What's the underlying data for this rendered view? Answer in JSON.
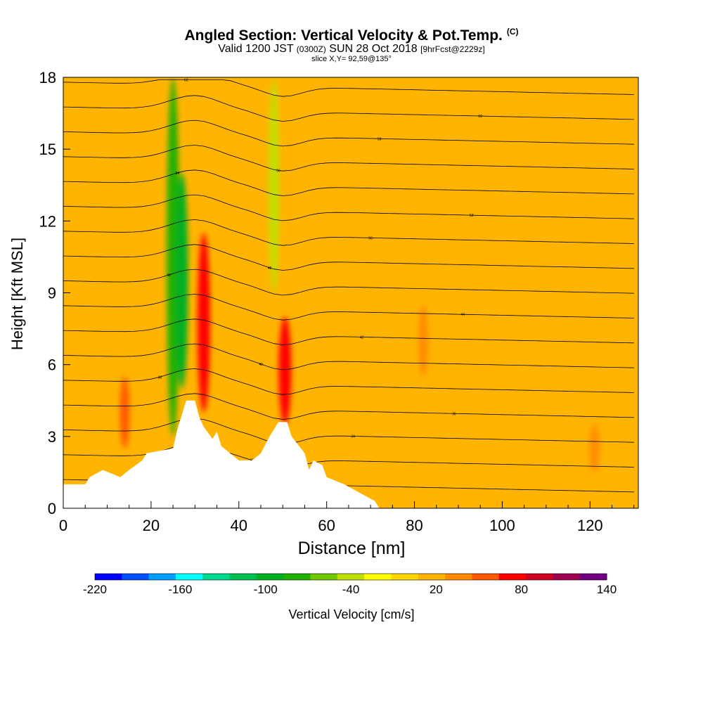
{
  "title": "Angled Section: Vertical Velocity & Pot.Temp.",
  "title_tag": "(C)",
  "subtitle_main": "Valid 1200 JST",
  "subtitle_z": "(0300Z)",
  "subtitle_date": "SUN 28 Oct 2018",
  "subtitle_fcst": "[9hrFcst@2229z]",
  "slice_text": "slice X,Y= 92,59@135°",
  "chart_data": {
    "type": "heatmap",
    "title": "Angled Section: Vertical Velocity & Pot.Temp.",
    "xlabel": "Distance [nm]",
    "ylabel": "Height [Kft MSL]",
    "xlim": [
      0,
      131
    ],
    "ylim": [
      0,
      18
    ],
    "x_ticks": [
      "0",
      "20",
      "40",
      "60",
      "80",
      "100",
      "120"
    ],
    "y_ticks": [
      "0",
      "3",
      "6",
      "9",
      "12",
      "15",
      "18"
    ],
    "colorbar": {
      "label": "Vertical Velocity [cm/s]",
      "tick_labels": [
        "-220",
        "-160",
        "-100",
        "-40",
        "20",
        "80",
        "140"
      ],
      "min": -220,
      "max": 140,
      "step": 20,
      "colors": [
        "#0000ff",
        "#0050ff",
        "#00a0ff",
        "#00ffff",
        "#00d890",
        "#00c050",
        "#00b020",
        "#20b000",
        "#70c800",
        "#c0e000",
        "#ffff00",
        "#ffd700",
        "#ffb400",
        "#ff8c00",
        "#ff5a00",
        "#ff0000",
        "#d00020",
        "#a00050",
        "#700080"
      ]
    },
    "velocity_features": [
      {
        "x": 25,
        "z_base": 3.0,
        "z_top": 18,
        "w_cm_s": -80
      },
      {
        "x": 27,
        "z_base": 5.0,
        "z_top": 14,
        "w_cm_s": -100
      },
      {
        "x": 48,
        "z_base": 9.0,
        "z_top": 18,
        "w_cm_s": -40
      },
      {
        "x": 32,
        "z_base": 4.0,
        "z_top": 11.5,
        "w_cm_s": 80
      },
      {
        "x": 50.5,
        "z_base": 3.5,
        "z_top": 8,
        "w_cm_s": 80
      },
      {
        "x": 14,
        "z_base": 2.5,
        "z_top": 5.5,
        "w_cm_s": 60
      },
      {
        "x": 82,
        "z_base": 5.5,
        "z_top": 8.5,
        "w_cm_s": 50
      },
      {
        "x": 5,
        "z_base": 2.0,
        "z_top": 18,
        "w_cm_s": 30
      },
      {
        "x": 41,
        "z_base": 4.0,
        "z_top": 18,
        "w_cm_s": 30
      },
      {
        "x": 121,
        "z_base": 1.5,
        "z_top": 3.5,
        "w_cm_s": 40
      }
    ],
    "terrain_profile": [
      [
        0,
        1.0
      ],
      [
        5,
        1.0
      ],
      [
        6,
        1.3
      ],
      [
        9,
        1.6
      ],
      [
        13,
        1.3
      ],
      [
        15,
        1.6
      ],
      [
        18,
        2.0
      ],
      [
        19,
        2.3
      ],
      [
        25,
        2.5
      ],
      [
        26,
        3.3
      ],
      [
        28,
        4.5
      ],
      [
        30,
        4.5
      ],
      [
        31,
        3.8
      ],
      [
        32,
        3.4
      ],
      [
        34,
        2.9
      ],
      [
        35,
        3.2
      ],
      [
        36,
        2.6
      ],
      [
        38,
        2.3
      ],
      [
        40,
        2.0
      ],
      [
        43,
        2.0
      ],
      [
        45,
        2.3
      ],
      [
        47,
        3.0
      ],
      [
        49,
        3.6
      ],
      [
        51,
        3.6
      ],
      [
        52,
        3.0
      ],
      [
        55,
        2.3
      ],
      [
        56,
        1.6
      ],
      [
        57,
        2.0
      ],
      [
        59,
        1.8
      ],
      [
        60,
        1.3
      ],
      [
        64,
        1.0
      ],
      [
        68,
        0.6
      ],
      [
        71,
        0.3
      ],
      [
        72,
        0.0
      ],
      [
        131,
        0.0
      ]
    ],
    "theta_contour_labels": [
      "30",
      "32",
      "34",
      "36",
      "38",
      "40",
      "42",
      "44",
      "46",
      "48",
      "50",
      "52",
      "54",
      "56",
      "58",
      "60",
      "62"
    ]
  }
}
